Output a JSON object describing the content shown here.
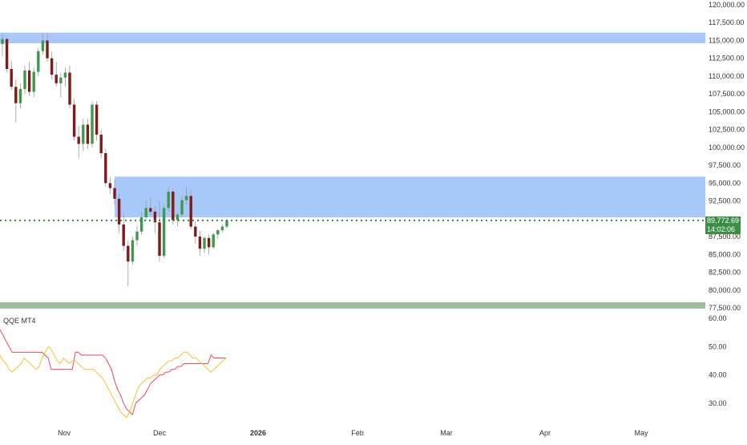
{
  "colors": {
    "up": "#3d9a4b",
    "down": "#801b1b",
    "zone_blue": "#a8c8fa",
    "zone_green": "#9dbf9d",
    "last_price_line": "#2e8b3a",
    "qqe_fast": "#e64b57",
    "qqe_slow": "#f2c12e"
  },
  "chart_data": [
    {
      "type": "candlestick",
      "title": "",
      "xlabel": "",
      "ylabel": "",
      "ylim": [
        76500,
        120500
      ],
      "y_ticks": [
        "120,000.00",
        "117,500.00",
        "115,000.00",
        "112,500.00",
        "110,000.00",
        "107,500.00",
        "105,000.00",
        "102,500.00",
        "100,000.00",
        "97,500.00",
        "95,000.00",
        "92,500.00",
        "87,500.00",
        "85,000.00",
        "82,500.00",
        "80,000.00",
        "77,500.00"
      ],
      "x_ticks": [
        "Nov",
        "Dec",
        "2026",
        "Feb",
        "Mar",
        "Apr",
        "May"
      ],
      "last_price": "89,772.69",
      "countdown": "14:02:06",
      "zones": [
        {
          "from": 114600,
          "to": 116100,
          "color": "blue"
        },
        {
          "from": 90200,
          "to": 95900,
          "color": "blue"
        },
        {
          "from": 77400,
          "to": 78300,
          "color": "green"
        }
      ],
      "ohlc": [
        [
          114500,
          115800,
          112800,
          115200
        ],
        [
          115200,
          115400,
          110500,
          111000
        ],
        [
          111000,
          112200,
          108000,
          108500
        ],
        [
          108500,
          109500,
          103500,
          106200
        ],
        [
          106200,
          109000,
          105500,
          108200
        ],
        [
          108200,
          111500,
          107500,
          110800
        ],
        [
          110800,
          112000,
          107200,
          107800
        ],
        [
          107800,
          111200,
          107000,
          110600
        ],
        [
          110600,
          114000,
          110000,
          113500
        ],
        [
          113500,
          116000,
          113000,
          115000
        ],
        [
          115000,
          116000,
          112000,
          112500
        ],
        [
          112500,
          113500,
          109500,
          110200
        ],
        [
          110200,
          112000,
          108500,
          109000
        ],
        [
          109000,
          110500,
          107000,
          109800
        ],
        [
          109800,
          111200,
          108500,
          110500
        ],
        [
          110500,
          111500,
          105500,
          106000
        ],
        [
          106000,
          106800,
          101000,
          101500
        ],
        [
          101500,
          103000,
          98500,
          100500
        ],
        [
          100500,
          104000,
          99500,
          103200
        ],
        [
          103200,
          104000,
          99800,
          100500
        ],
        [
          100500,
          106500,
          100000,
          106000
        ],
        [
          106000,
          106500,
          101000,
          101800
        ],
        [
          101800,
          102500,
          98500,
          99200
        ],
        [
          99200,
          99800,
          94500,
          95000
        ],
        [
          95000,
          95800,
          93500,
          94300
        ],
        [
          94300,
          95500,
          92000,
          92800
        ],
        [
          92800,
          93500,
          88000,
          89200
        ],
        [
          89200,
          90500,
          85500,
          86200
        ],
        [
          86200,
          87000,
          80500,
          84000
        ],
        [
          84000,
          87500,
          83500,
          87000
        ],
        [
          87000,
          89000,
          86200,
          88200
        ],
        [
          88200,
          91000,
          87800,
          90200
        ],
        [
          90200,
          92500,
          89800,
          91500
        ],
        [
          91500,
          93000,
          90500,
          91000
        ],
        [
          91000,
          91800,
          88000,
          89500
        ],
        [
          89500,
          92500,
          84000,
          84800
        ],
        [
          84800,
          92000,
          84500,
          91500
        ],
        [
          91500,
          94500,
          91000,
          93800
        ],
        [
          93800,
          94200,
          89200,
          89800
        ],
        [
          89800,
          91000,
          89000,
          90600
        ],
        [
          90600,
          93200,
          90200,
          92600
        ],
        [
          92600,
          94500,
          92000,
          93200
        ],
        [
          93200,
          94000,
          88500,
          88900
        ],
        [
          88900,
          89700,
          86500,
          87500
        ],
        [
          87500,
          88300,
          84800,
          85800
        ],
        [
          85800,
          87500,
          85200,
          87300
        ],
        [
          87300,
          87800,
          85000,
          86000
        ],
        [
          86000,
          88000,
          85800,
          87800
        ],
        [
          87800,
          88600,
          87200,
          88400
        ],
        [
          88400,
          89200,
          88100,
          88900
        ],
        [
          88900,
          89900,
          88600,
          89772.69
        ]
      ]
    },
    {
      "type": "line",
      "title": "QQE MT4",
      "ylim": [
        25,
        60
      ],
      "y_ticks": [
        "60.00",
        "50.00",
        "40.00",
        "30.00"
      ],
      "series": [
        {
          "color": "fast",
          "values": [
            56,
            54,
            52,
            50,
            48,
            48,
            48,
            48,
            48,
            48,
            48,
            48,
            48,
            48,
            48,
            47,
            46,
            42,
            42,
            42,
            42,
            42,
            42,
            42,
            42,
            48,
            48,
            47,
            47,
            47,
            47,
            47,
            47,
            47,
            47,
            46,
            44,
            42,
            38,
            35,
            33,
            30,
            28,
            27,
            26,
            30,
            31,
            32,
            33,
            35,
            37,
            38,
            39,
            40,
            40,
            41,
            41,
            42,
            42,
            43,
            43,
            44,
            44,
            44,
            44,
            44,
            44,
            44,
            44,
            44,
            47,
            46,
            46,
            46,
            46,
            46
          ]
        },
        {
          "color": "slow",
          "values": [
            47,
            45,
            44,
            42,
            41,
            42,
            43,
            44,
            46,
            45,
            44,
            43,
            42,
            43,
            46,
            48,
            50,
            49,
            47,
            45,
            44,
            46,
            45,
            44,
            45,
            45,
            44,
            43,
            42,
            42,
            42,
            42,
            41,
            40,
            39,
            37,
            35,
            33,
            31,
            29,
            27,
            26,
            25,
            27,
            30,
            33,
            36,
            37,
            38,
            39,
            39,
            40,
            40,
            42,
            43,
            44,
            45,
            45,
            46,
            46,
            47,
            48,
            48,
            47,
            46,
            46,
            45,
            44,
            43,
            42,
            41,
            42,
            43,
            44,
            45,
            46
          ]
        }
      ]
    }
  ]
}
